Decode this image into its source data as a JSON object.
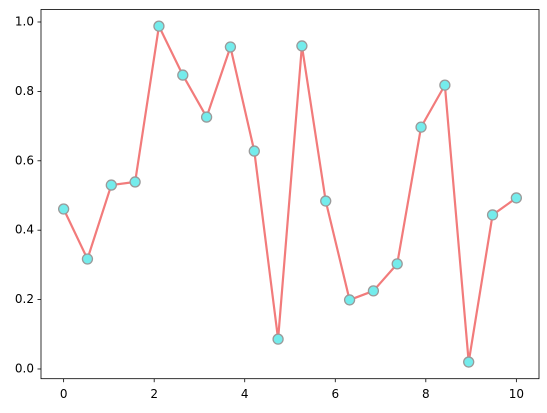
{
  "chart_data": {
    "type": "line",
    "x": [
      0,
      0.526,
      1.053,
      1.579,
      2.105,
      2.632,
      3.158,
      3.684,
      4.211,
      4.737,
      5.263,
      5.789,
      6.316,
      6.842,
      7.368,
      7.895,
      8.421,
      8.947,
      9.474,
      10
    ],
    "series": [
      {
        "color": "#f27b7b",
        "marker_color": "#74ecec",
        "marker_edge_color": "#9a9a9a",
        "values": [
          0.461,
          0.317,
          0.53,
          0.539,
          0.988,
          0.847,
          0.726,
          0.928,
          0.628,
          0.086,
          0.931,
          0.484,
          0.199,
          0.225,
          0.303,
          0.697,
          0.818,
          0.02,
          0.444,
          0.493
        ]
      }
    ],
    "xlim": [
      -0.5,
      10.5
    ],
    "ylim": [
      -0.028,
      1.036
    ],
    "xticks": [
      0,
      2,
      4,
      6,
      8,
      10
    ],
    "yticks": [
      {
        "value": 0,
        "label": "0.0"
      },
      0.2,
      0.4,
      0.6,
      0.8,
      {
        "value": 1,
        "label": "1.0"
      }
    ],
    "grid": false
  }
}
